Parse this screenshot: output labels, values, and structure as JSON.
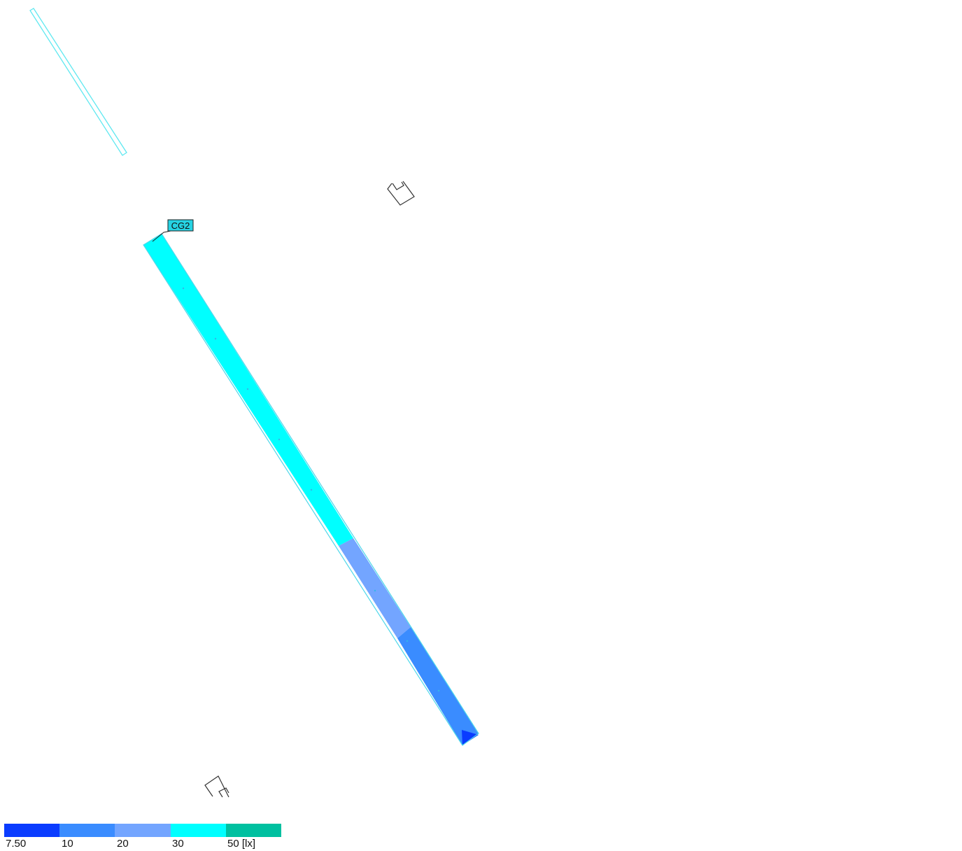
{
  "label": {
    "text": "CG2"
  },
  "calculation_grid": {
    "segments": [
      {
        "name": "segment-cyan",
        "band": 3
      },
      {
        "name": "segment-light-blue",
        "band": 2
      },
      {
        "name": "segment-medium-blue",
        "band": 1
      },
      {
        "name": "segment-deep-blue",
        "band": 0
      }
    ]
  },
  "legend": {
    "colors": [
      "#0a3cff",
      "#3a8cff",
      "#73a5ff",
      "#00ffff",
      "#00c0a0"
    ],
    "labels": [
      "7.50",
      "10",
      "20",
      "30",
      "50 [lx]"
    ]
  },
  "colors": {
    "outline_cyan": "#5fe8f0",
    "fixture_outline": "#333333",
    "label_bg": "#26d3e3"
  }
}
